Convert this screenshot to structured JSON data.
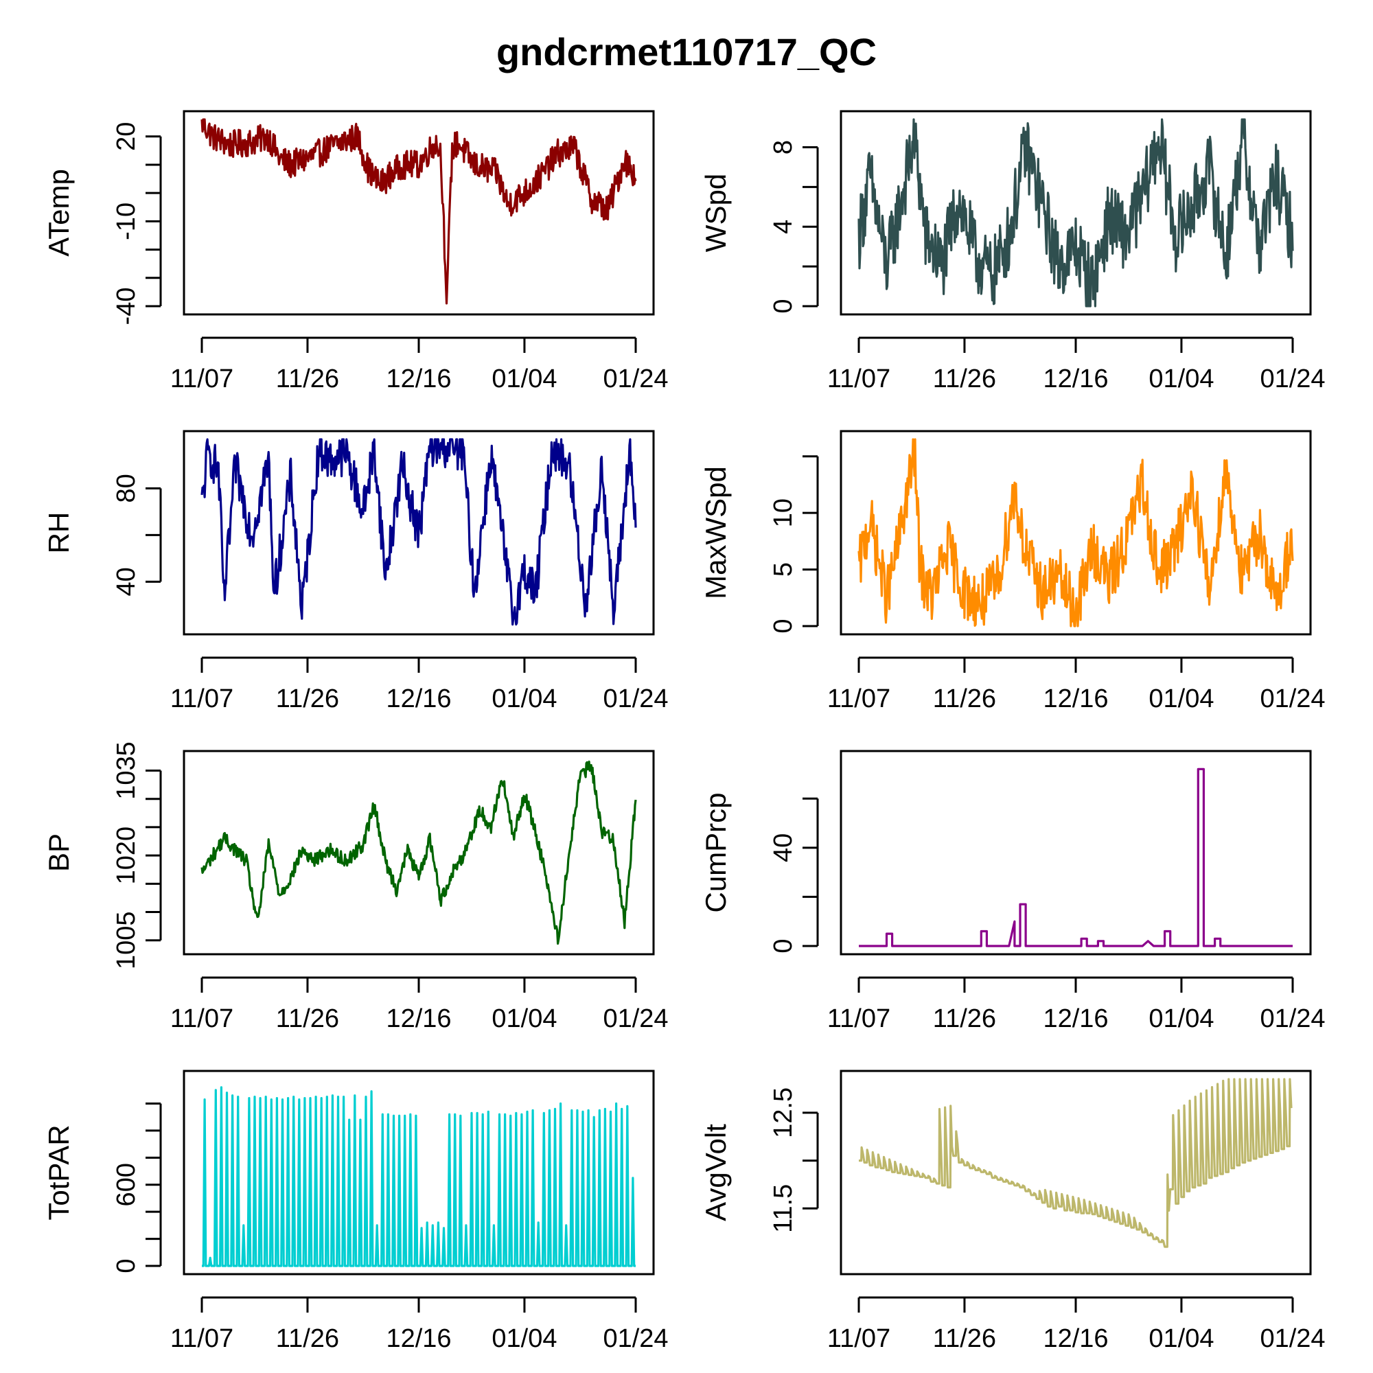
{
  "title": "gndcrmet110717_QC",
  "chart_data": [
    {
      "type": "line",
      "variable": "ATemp",
      "ylabel": "ATemp",
      "color": "#8B0000",
      "xlim": [
        "2017-11-07",
        "2018-01-24"
      ],
      "xticks": [
        {
          "date": "2017-11-07",
          "label": "11/07"
        },
        {
          "date": "2017-11-26",
          "label": "11/26"
        },
        {
          "date": "2017-12-16",
          "label": "12/16"
        },
        {
          "date": "2018-01-04",
          "label": "01/04"
        },
        {
          "date": "2018-01-24",
          "label": "01/24"
        }
      ],
      "ylim": [
        -40,
        26
      ],
      "yticks": [
        -40,
        -30,
        -20,
        -10,
        0,
        10,
        20
      ],
      "ytick_labels": [
        "-40",
        "",
        "",
        "-10",
        "",
        "",
        "20"
      ],
      "series": [
        {
          "dates": [
            "2017-11-07",
            "2017-11-09",
            "2017-11-12",
            "2017-11-16",
            "2017-11-19",
            "2017-11-21",
            "2017-11-23",
            "2017-11-27",
            "2017-11-30",
            "2017-12-02",
            "2017-12-05",
            "2017-12-07",
            "2017-12-09",
            "2017-12-13",
            "2017-12-16",
            "2017-12-19",
            "2017-12-20",
            "2017-12-21",
            "2017-12-22",
            "2017-12-23",
            "2017-12-26",
            "2017-12-30",
            "2018-01-01",
            "2018-01-04",
            "2018-01-07",
            "2018-01-10",
            "2018-01-13",
            "2018-01-16",
            "2018-01-19",
            "2018-01-22",
            "2018-01-24"
          ],
          "values": [
            25,
            20,
            17,
            18,
            20,
            12,
            10,
            13,
            16,
            18,
            20,
            8,
            3,
            10,
            10,
            18,
            14,
            -39,
            15,
            18,
            10,
            7,
            -4,
            0,
            6,
            14,
            16,
            -2,
            -6,
            12,
            6
          ]
        }
      ]
    },
    {
      "type": "line",
      "variable": "WSpd",
      "ylabel": "WSpd",
      "color": "#2F4F4F",
      "xlim": [
        "2017-11-07",
        "2018-01-24"
      ],
      "xticks": [
        {
          "date": "2017-11-07",
          "label": "11/07"
        },
        {
          "date": "2017-11-26",
          "label": "11/26"
        },
        {
          "date": "2017-12-16",
          "label": "12/16"
        },
        {
          "date": "2018-01-04",
          "label": "01/04"
        },
        {
          "date": "2018-01-24",
          "label": "01/24"
        }
      ],
      "ylim": [
        0,
        9.4
      ],
      "yticks": [
        0,
        2,
        4,
        6,
        8
      ],
      "ytick_labels": [
        "0",
        "",
        "4",
        "",
        "8"
      ],
      "series": [
        {
          "dates": [
            "2017-11-07",
            "2017-11-09",
            "2017-11-12",
            "2017-11-14",
            "2017-11-17",
            "2017-11-19",
            "2017-11-22",
            "2017-11-25",
            "2017-11-28",
            "2017-12-01",
            "2017-12-04",
            "2017-12-07",
            "2017-12-10",
            "2017-12-13",
            "2017-12-16",
            "2017-12-19",
            "2017-12-22",
            "2017-12-25",
            "2017-12-28",
            "2017-12-31",
            "2018-01-03",
            "2018-01-06",
            "2018-01-09",
            "2018-01-12",
            "2018-01-15",
            "2018-01-18",
            "2018-01-21",
            "2018-01-24"
          ],
          "values": [
            3.5,
            6.5,
            2.0,
            4.5,
            8.5,
            3.5,
            2.0,
            5.5,
            2.5,
            1.5,
            3.5,
            8.0,
            5.0,
            2.0,
            3.0,
            1.0,
            4.5,
            3.5,
            5.5,
            8.5,
            3.5,
            5.0,
            7.0,
            2.5,
            8.5,
            3.0,
            6.5,
            3.5
          ]
        }
      ]
    },
    {
      "type": "line",
      "variable": "RH",
      "ylabel": "RH",
      "color": "#00008B",
      "xlim": [
        "2017-11-07",
        "2018-01-24"
      ],
      "xticks": [
        {
          "date": "2017-11-07",
          "label": "11/07"
        },
        {
          "date": "2017-11-26",
          "label": "11/26"
        },
        {
          "date": "2017-12-16",
          "label": "12/16"
        },
        {
          "date": "2018-01-04",
          "label": "01/04"
        },
        {
          "date": "2018-01-24",
          "label": "01/24"
        }
      ],
      "ylim": [
        21,
        101
      ],
      "yticks": [
        40,
        60,
        80
      ],
      "ytick_labels": [
        "40",
        "",
        "80"
      ],
      "series": [
        {
          "dates": [
            "2017-11-07",
            "2017-11-08",
            "2017-11-10",
            "2017-11-11",
            "2017-11-13",
            "2017-11-16",
            "2017-11-19",
            "2017-11-20",
            "2017-11-23",
            "2017-11-25",
            "2017-11-28",
            "2017-11-30",
            "2017-12-03",
            "2017-12-06",
            "2017-12-08",
            "2017-12-10",
            "2017-12-13",
            "2017-12-16",
            "2017-12-18",
            "2017-12-21",
            "2017-12-24",
            "2017-12-26",
            "2017-12-29",
            "2017-12-31",
            "2018-01-02",
            "2018-01-04",
            "2018-01-06",
            "2018-01-09",
            "2018-01-12",
            "2018-01-15",
            "2018-01-18",
            "2018-01-20",
            "2018-01-23",
            "2018-01-24"
          ],
          "values": [
            72,
            95,
            88,
            32,
            90,
            60,
            92,
            35,
            85,
            28,
            97,
            92,
            95,
            70,
            98,
            42,
            90,
            60,
            98,
            98,
            96,
            35,
            95,
            60,
            25,
            45,
            35,
            98,
            90,
            30,
            90,
            25,
            98,
            60
          ]
        }
      ]
    },
    {
      "type": "line",
      "variable": "MaxWSpd",
      "ylabel": "MaxWSpd",
      "color": "#FF8C00",
      "xlim": [
        "2017-11-07",
        "2018-01-24"
      ],
      "xticks": [
        {
          "date": "2017-11-07",
          "label": "11/07"
        },
        {
          "date": "2017-11-26",
          "label": "11/26"
        },
        {
          "date": "2017-12-16",
          "label": "12/16"
        },
        {
          "date": "2018-01-04",
          "label": "01/04"
        },
        {
          "date": "2018-01-24",
          "label": "01/24"
        }
      ],
      "ylim": [
        0,
        16.5
      ],
      "yticks": [
        0,
        5,
        10,
        15
      ],
      "ytick_labels": [
        "0",
        "5",
        "10",
        ""
      ],
      "series": [
        {
          "dates": [
            "2017-11-07",
            "2017-11-09",
            "2017-11-12",
            "2017-11-14",
            "2017-11-17",
            "2017-11-18",
            "2017-11-20",
            "2017-11-23",
            "2017-11-26",
            "2017-11-29",
            "2017-12-02",
            "2017-12-05",
            "2017-12-07",
            "2017-12-10",
            "2017-12-13",
            "2017-12-16",
            "2017-12-19",
            "2017-12-22",
            "2017-12-25",
            "2017-12-28",
            "2017-12-31",
            "2018-01-03",
            "2018-01-06",
            "2018-01-09",
            "2018-01-12",
            "2018-01-15",
            "2018-01-18",
            "2018-01-21",
            "2018-01-24"
          ],
          "values": [
            5.0,
            9.5,
            2.5,
            7.0,
            15.5,
            5.0,
            2.5,
            7.0,
            3.0,
            2.0,
            4.0,
            12.0,
            6.5,
            3.0,
            4.5,
            1.0,
            7.0,
            4.0,
            7.5,
            12.5,
            4.5,
            7.0,
            12.5,
            3.0,
            14.0,
            4.0,
            8.5,
            2.0,
            8.0
          ]
        }
      ]
    },
    {
      "type": "line",
      "variable": "BP",
      "ylabel": "BP",
      "color": "#006400",
      "xlim": [
        "2017-11-07",
        "2018-01-24"
      ],
      "xticks": [
        {
          "date": "2017-11-07",
          "label": "11/07"
        },
        {
          "date": "2017-11-26",
          "label": "11/26"
        },
        {
          "date": "2017-12-16",
          "label": "12/16"
        },
        {
          "date": "2018-01-04",
          "label": "01/04"
        },
        {
          "date": "2018-01-24",
          "label": "01/24"
        }
      ],
      "ylim": [
        1004,
        1037
      ],
      "yticks": [
        1005,
        1010,
        1015,
        1020,
        1025,
        1030,
        1035
      ],
      "ytick_labels": [
        "1005",
        "",
        "",
        "1020",
        "",
        "",
        "1035"
      ],
      "series": [
        {
          "dates": [
            "2017-11-07",
            "2017-11-09",
            "2017-11-11",
            "2017-11-13",
            "2017-11-15",
            "2017-11-17",
            "2017-11-19",
            "2017-11-21",
            "2017-11-23",
            "2017-11-25",
            "2017-11-27",
            "2017-11-30",
            "2017-12-03",
            "2017-12-06",
            "2017-12-08",
            "2017-12-10",
            "2017-12-12",
            "2017-12-14",
            "2017-12-16",
            "2017-12-18",
            "2017-12-20",
            "2017-12-22",
            "2017-12-24",
            "2017-12-27",
            "2017-12-29",
            "2017-12-31",
            "2018-01-02",
            "2018-01-04",
            "2018-01-06",
            "2018-01-08",
            "2018-01-10",
            "2018-01-12",
            "2018-01-14",
            "2018-01-16",
            "2018-01-18",
            "2018-01-20",
            "2018-01-22",
            "2018-01-24"
          ],
          "values": [
            1017,
            1020,
            1023,
            1021,
            1019,
            1008,
            1022,
            1013,
            1016,
            1021,
            1019,
            1021,
            1019,
            1022,
            1029,
            1019,
            1014,
            1021,
            1016,
            1023,
            1012,
            1017,
            1020,
            1028,
            1025,
            1034,
            1023,
            1031,
            1024,
            1016,
            1005,
            1020,
            1034,
            1036,
            1024,
            1023,
            1008,
            1030
          ]
        }
      ]
    },
    {
      "type": "line",
      "variable": "CumPrcp",
      "ylabel": "CumPrcp",
      "color": "#8B008B",
      "xlim": [
        "2017-11-07",
        "2018-01-24"
      ],
      "xticks": [
        {
          "date": "2017-11-07",
          "label": "11/07"
        },
        {
          "date": "2017-11-26",
          "label": "11/26"
        },
        {
          "date": "2017-12-16",
          "label": "12/16"
        },
        {
          "date": "2018-01-04",
          "label": "01/04"
        },
        {
          "date": "2018-01-24",
          "label": "01/24"
        }
      ],
      "ylim": [
        0,
        76
      ],
      "yticks": [
        0,
        20,
        40,
        60
      ],
      "ytick_labels": [
        "0",
        "",
        "40",
        ""
      ],
      "series": [
        {
          "dates": [
            "2017-11-07",
            "2017-11-12",
            "2017-11-12",
            "2017-11-13",
            "2017-11-13",
            "2017-11-29",
            "2017-11-29",
            "2017-11-30",
            "2017-11-30",
            "2017-12-04",
            "2017-12-05",
            "2017-12-05",
            "2017-12-06",
            "2017-12-06",
            "2017-12-07",
            "2017-12-07",
            "2017-12-08",
            "2017-12-08",
            "2017-12-17",
            "2017-12-17",
            "2017-12-18",
            "2017-12-18",
            "2017-12-20",
            "2017-12-20",
            "2017-12-21",
            "2017-12-21",
            "2017-12-28",
            "2017-12-29",
            "2017-12-29",
            "2017-12-30",
            "2017-12-30",
            "2018-01-01",
            "2018-01-01",
            "2018-01-02",
            "2018-01-02",
            "2018-01-07",
            "2018-01-07",
            "2018-01-08",
            "2018-01-08",
            "2018-01-10",
            "2018-01-10",
            "2018-01-11",
            "2018-01-11",
            "2018-01-24"
          ],
          "values": [
            0,
            0,
            5,
            5,
            0,
            0,
            6,
            6,
            0,
            0,
            10,
            0,
            0,
            17,
            17,
            0,
            0,
            0,
            0,
            3,
            3,
            0,
            0,
            2,
            2,
            0,
            0,
            2,
            2,
            0,
            0,
            0,
            6,
            6,
            0,
            0,
            72,
            72,
            0,
            0,
            3,
            3,
            0,
            0
          ]
        }
      ]
    },
    {
      "type": "line",
      "variable": "TotPAR",
      "ylabel": "TotPAR",
      "color": "#00CED1",
      "xlim": [
        "2017-11-07",
        "2018-01-24"
      ],
      "xticks": [
        {
          "date": "2017-11-07",
          "label": "11/07"
        },
        {
          "date": "2017-11-26",
          "label": "11/26"
        },
        {
          "date": "2017-12-16",
          "label": "12/16"
        },
        {
          "date": "2018-01-04",
          "label": "01/04"
        },
        {
          "date": "2018-01-24",
          "label": "01/24"
        }
      ],
      "ylim": [
        0,
        1380
      ],
      "yticks": [
        0,
        200,
        400,
        600,
        800,
        1000,
        1200
      ],
      "ytick_labels": [
        "0",
        "",
        "",
        "600",
        "",
        "",
        ""
      ],
      "series": [
        {
          "note_free": true,
          "daily_peak_values": [
            1230,
            60,
            1300,
            1320,
            1280,
            1260,
            1250,
            300,
            1240,
            1250,
            1240,
            1250,
            1230,
            1240,
            1230,
            1240,
            1250,
            1230,
            1240,
            1240,
            1250,
            1240,
            1250,
            1260,
            1250,
            1250,
            1080,
            1260,
            1080,
            1250,
            1290,
            300,
            1120,
            1120,
            1110,
            1110,
            1110,
            1120,
            1110,
            280,
            320,
            300,
            320,
            280,
            1120,
            1120,
            1110,
            300,
            1130,
            1130,
            1120,
            1140,
            300,
            1120,
            1120,
            1110,
            1130,
            1120,
            1140,
            1150,
            320,
            1130,
            1150,
            1160,
            1200,
            300,
            1150,
            1150,
            1140,
            1150,
            1100,
            1150,
            1160,
            1140,
            1200,
            1160,
            1180,
            650
          ]
        }
      ]
    },
    {
      "type": "line",
      "variable": "AvgVolt",
      "ylabel": "AvgVolt",
      "color": "#BDB76B",
      "xlim": [
        "2017-11-07",
        "2018-01-24"
      ],
      "xticks": [
        {
          "date": "2017-11-07",
          "label": "11/07"
        },
        {
          "date": "2017-11-26",
          "label": "11/26"
        },
        {
          "date": "2017-12-16",
          "label": "12/16"
        },
        {
          "date": "2018-01-04",
          "label": "01/04"
        },
        {
          "date": "2018-01-24",
          "label": "01/24"
        }
      ],
      "ylim": [
        10.9,
        12.85
      ],
      "yticks": [
        11.5,
        12.0,
        12.5
      ],
      "ytick_labels": [
        "11.5",
        "",
        "12.5"
      ],
      "series": [
        {
          "dates": [
            "2017-11-07",
            "2017-11-21",
            "2017-11-21",
            "2017-11-24",
            "2017-11-25",
            "2017-12-08",
            "2017-12-10",
            "2017-12-17",
            "2017-12-26",
            "2018-01-01",
            "2018-01-01",
            "2018-01-02",
            "2018-01-06",
            "2018-01-12",
            "2018-01-24"
          ],
          "values": [
            12.07,
            11.72,
            12.45,
            12.5,
            11.95,
            11.55,
            11.62,
            11.52,
            11.35,
            11.02,
            11.35,
            12.2,
            12.4,
            12.6,
            12.7
          ],
          "daily_min_values": [
            12.0,
            11.98,
            11.95,
            11.93,
            11.92,
            11.9,
            11.88,
            11.87,
            11.86,
            11.85,
            11.84,
            11.83,
            11.82,
            11.78,
            11.76,
            11.74,
            11.72,
            12.05,
            11.98,
            11.95,
            11.92,
            11.9,
            11.88,
            11.86,
            11.82,
            11.8,
            11.78,
            11.76,
            11.74,
            11.72,
            11.68,
            11.64,
            11.6,
            11.56,
            11.52,
            11.5,
            11.52,
            11.48,
            11.48,
            11.46,
            11.45,
            11.45,
            11.44,
            11.42,
            11.4,
            11.38,
            11.36,
            11.34,
            11.32,
            11.3,
            11.28,
            11.25,
            11.22,
            11.18,
            11.15,
            11.1,
            11.7,
            11.55,
            11.62,
            11.68,
            11.72,
            11.74,
            11.76,
            11.82,
            11.84,
            11.86,
            11.88,
            11.92,
            11.95,
            11.98,
            12.0,
            12.02,
            12.04,
            12.06,
            12.08,
            12.1,
            12.12,
            12.15
          ]
        }
      ]
    }
  ]
}
